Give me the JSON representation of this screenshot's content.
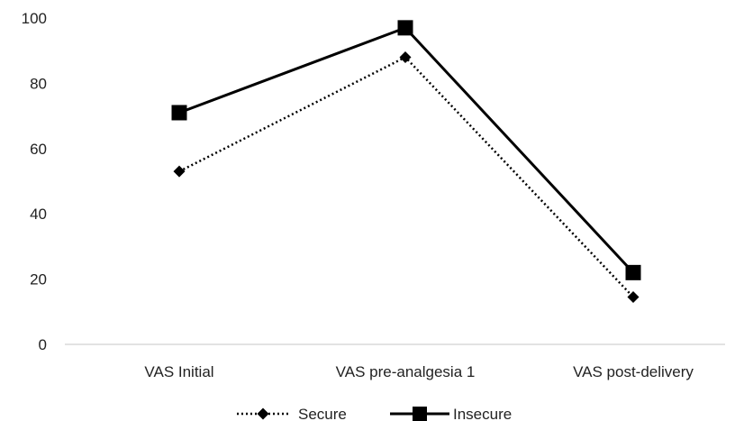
{
  "chart_data": {
    "type": "line",
    "categories": [
      "VAS Initial",
      "VAS pre-analgesia 1",
      "VAS post-delivery"
    ],
    "series": [
      {
        "name": "Secure",
        "values": [
          53,
          88,
          14.5
        ],
        "line_style": "dotted",
        "marker": "diamond",
        "color": "#000000"
      },
      {
        "name": "Insecure",
        "values": [
          71,
          97,
          22
        ],
        "line_style": "solid",
        "marker": "square",
        "color": "#000000"
      }
    ],
    "ylim": [
      0,
      100
    ],
    "yticks": [
      0,
      20,
      40,
      60,
      80,
      100
    ],
    "ytick_labels": [
      "0",
      "20",
      "40",
      "60",
      "80",
      "100"
    ],
    "grid": false,
    "legend_position": "bottom-center"
  }
}
